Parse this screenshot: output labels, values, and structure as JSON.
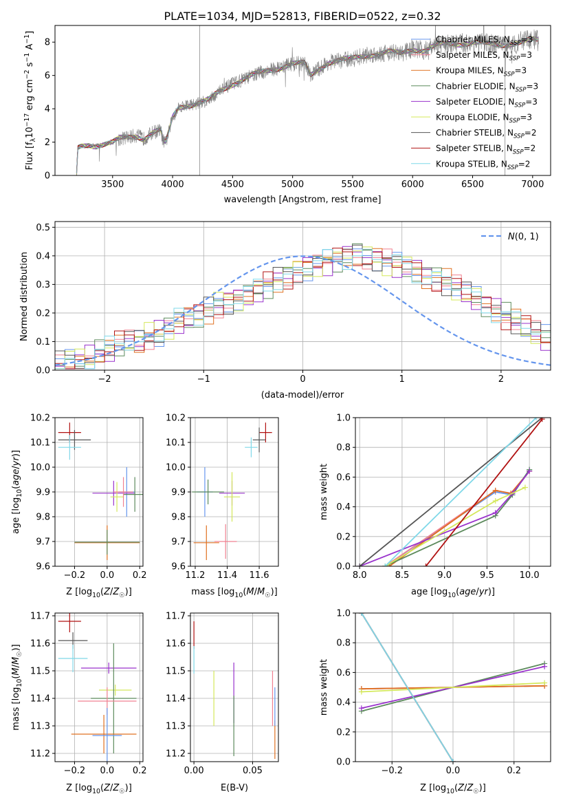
{
  "figure": {
    "title": "PLATE=1034, MJD=52813, FIBERID=0522, z=0.32"
  },
  "palette": {
    "Chabrier MILES": "#6495ed",
    "Salpeter MILES": "#f08090",
    "Kroupa MILES": "#e07020",
    "Chabrier ELODIE": "#5c8a5c",
    "Salpeter ELODIE": "#9932cc",
    "Kroupa ELODIE": "#d4e85a",
    "Chabrier STELIB": "#555555",
    "Salpeter STELIB": "#b01010",
    "Kroupa STELIB": "#7fd8e8",
    "data": "#808080"
  },
  "chart_data": [
    {
      "id": "spectrum",
      "type": "line",
      "xlabel": "wavelength [Angstrom, rest frame]",
      "ylabel": "Flux [f_λ 10^-17 erg cm^-2 s^-1 A^-1]",
      "xlim": [
        3020,
        7150
      ],
      "ylim": [
        0,
        9
      ],
      "xticks": [
        3500,
        4000,
        4500,
        5000,
        5500,
        6000,
        6500,
        7000
      ],
      "yticks": [
        0,
        2,
        4,
        6,
        8
      ],
      "grid": false,
      "legend_position": "top-right",
      "legend": [
        "Chabrier MILES, N_SSP=3",
        "Salpeter MILES, N_SSP=3",
        "Kroupa MILES, N_SSP=3",
        "Chabrier ELODIE, N_SSP=3",
        "Salpeter ELODIE, N_SSP=3",
        "Kroupa ELODIE, N_SSP=3",
        "Chabrier STELIB, N_SSP=2",
        "Salpeter STELIB, N_SSP=2",
        "Kroupa STELIB, N_SSP=2"
      ],
      "continuum": [
        [
          3200,
          0
        ],
        [
          3210,
          1.6
        ],
        [
          3240,
          1.75
        ],
        [
          3300,
          1.85
        ],
        [
          3360,
          1.8
        ],
        [
          3440,
          1.9
        ],
        [
          3500,
          1.95
        ],
        [
          3560,
          2.2
        ],
        [
          3640,
          2.3
        ],
        [
          3700,
          2.4
        ],
        [
          3760,
          2.2
        ],
        [
          3840,
          2.6
        ],
        [
          3900,
          2.7
        ],
        [
          3920,
          2.1
        ],
        [
          3940,
          1.9
        ],
        [
          3980,
          2.9
        ],
        [
          4000,
          3.5
        ],
        [
          4050,
          4.1
        ],
        [
          4100,
          4.2
        ],
        [
          4200,
          4.3
        ],
        [
          4300,
          4.5
        ],
        [
          4400,
          5.1
        ],
        [
          4500,
          5.5
        ],
        [
          4600,
          5.8
        ],
        [
          4700,
          6.1
        ],
        [
          4800,
          6.3
        ],
        [
          4900,
          6.5
        ],
        [
          5000,
          6.7
        ],
        [
          5100,
          6.7
        ],
        [
          5150,
          6.0
        ],
        [
          5200,
          6.3
        ],
        [
          5300,
          6.8
        ],
        [
          5400,
          6.9
        ],
        [
          5500,
          7.0
        ],
        [
          5600,
          7.2
        ],
        [
          5700,
          7.3
        ],
        [
          5800,
          7.4
        ],
        [
          5900,
          7.3
        ],
        [
          6000,
          7.6
        ],
        [
          6100,
          7.5
        ],
        [
          6200,
          7.8
        ],
        [
          6300,
          7.9
        ],
        [
          6400,
          7.9
        ],
        [
          6500,
          8.0
        ],
        [
          6600,
          7.9
        ],
        [
          6700,
          7.8
        ],
        [
          6800,
          7.9
        ],
        [
          6900,
          8.0
        ],
        [
          7000,
          8.1
        ],
        [
          7050,
          8.1
        ]
      ],
      "annotations": [
        {
          "x": 4225,
          "ymin": 0,
          "ymax": 9
        },
        {
          "x": 6770,
          "ymin": 0,
          "ymax": 9
        }
      ]
    },
    {
      "id": "residuals",
      "type": "line",
      "xlabel": "(data-model)/error",
      "ylabel": "Normed distribution",
      "xlim": [
        -2.5,
        2.5
      ],
      "ylim": [
        0,
        0.52
      ],
      "xticks": [
        -2,
        -1,
        0,
        1,
        2
      ],
      "yticks": [
        0.0,
        0.1,
        0.2,
        0.3,
        0.4,
        0.5
      ],
      "grid": true,
      "legend_position": "top-right",
      "legend": [
        "N(0, 1)"
      ],
      "normal_curve": {
        "mean": 0,
        "sd": 1,
        "style": "dashed",
        "color": "#6495ed"
      },
      "bins": {
        "start": -2.5,
        "width": 0.1,
        "count": 50
      },
      "histogram_base": [
        0.02,
        0.03,
        0.035,
        0.04,
        0.06,
        0.07,
        0.09,
        0.1,
        0.1,
        0.12,
        0.13,
        0.15,
        0.17,
        0.18,
        0.19,
        0.21,
        0.23,
        0.24,
        0.25,
        0.26,
        0.28,
        0.3,
        0.32,
        0.33,
        0.35,
        0.36,
        0.37,
        0.38,
        0.39,
        0.4,
        0.41,
        0.4,
        0.39,
        0.38,
        0.37,
        0.36,
        0.35,
        0.33,
        0.32,
        0.31,
        0.29,
        0.27,
        0.25,
        0.23,
        0.21,
        0.19,
        0.17,
        0.15,
        0.13,
        0.11
      ]
    },
    {
      "id": "age-vs-Z",
      "type": "scatter",
      "xlabel": "Z [log10(Z/Z☉)]",
      "ylabel": "age  [log10(age/yr)]",
      "xlim": [
        -0.32,
        0.22
      ],
      "ylim": [
        9.6,
        10.2
      ],
      "xticks": [
        -0.2,
        0.0,
        0.2
      ],
      "yticks": [
        9.6,
        9.7,
        9.8,
        9.9,
        10.0,
        10.1,
        10.2
      ],
      "grid": true,
      "points": [
        {
          "series": "Salpeter STELIB",
          "x": -0.23,
          "y": 10.14,
          "xerr": 0.07,
          "yerr": 0.04
        },
        {
          "series": "Chabrier STELIB",
          "x": -0.2,
          "y": 10.11,
          "xerr": 0.1,
          "yerr": 0.04
        },
        {
          "series": "Kroupa STELIB",
          "x": -0.23,
          "y": 10.08,
          "xerr": 0.07,
          "yerr": 0.05
        },
        {
          "series": "Chabrier MILES",
          "x": 0.12,
          "y": 9.9,
          "xerr": 0.05,
          "yerr": 0.1
        },
        {
          "series": "Salpeter ELODIE",
          "x": 0.04,
          "y": 9.895,
          "xerr": 0.13,
          "yerr": 0.05
        },
        {
          "series": "Chabrier ELODIE",
          "x": 0.17,
          "y": 9.89,
          "xerr": 0.07,
          "yerr": 0.07
        },
        {
          "series": "Kroupa ELODIE",
          "x": 0.06,
          "y": 9.88,
          "xerr": 0.04,
          "yerr": 0.06
        },
        {
          "series": "Salpeter MILES",
          "x": 0.1,
          "y": 9.9,
          "xerr": 0.06,
          "yerr": 0.06
        },
        {
          "series": "Kroupa MILES",
          "x": 0.0,
          "y": 9.695,
          "xerr": 0.2,
          "yerr": 0.07
        },
        {
          "series": "Chabrier ELODIE",
          "x": 0.0,
          "y": 9.697,
          "xerr": 0.2,
          "yerr": 0.05
        }
      ]
    },
    {
      "id": "age-vs-mass",
      "type": "scatter",
      "xlabel": "mass [log10(M/M☉)]",
      "ylabel": "",
      "xlim": [
        11.17,
        11.72
      ],
      "ylim": [
        9.6,
        10.2
      ],
      "xticks": [
        11.2,
        11.4,
        11.6
      ],
      "yticks": [
        9.6,
        9.7,
        9.8,
        9.9,
        10.0,
        10.1,
        10.2
      ],
      "grid": true,
      "points": [
        {
          "series": "Salpeter STELIB",
          "x": 11.64,
          "y": 10.14,
          "xerr": 0.04,
          "yerr": 0.04
        },
        {
          "series": "Chabrier STELIB",
          "x": 11.6,
          "y": 10.11,
          "xerr": 0.04,
          "yerr": 0.05
        },
        {
          "series": "Kroupa STELIB",
          "x": 11.55,
          "y": 10.08,
          "xerr": 0.04,
          "yerr": 0.04
        },
        {
          "series": "Chabrier MILES",
          "x": 11.26,
          "y": 9.9,
          "xerr": 0.05,
          "yerr": 0.1
        },
        {
          "series": "Salpeter ELODIE",
          "x": 11.43,
          "y": 9.895,
          "xerr": 0.08,
          "yerr": 0.05
        },
        {
          "series": "Kroupa ELODIE",
          "x": 11.43,
          "y": 9.88,
          "xerr": 0.05,
          "yerr": 0.1
        },
        {
          "series": "Chabrier ELODIE",
          "x": 11.28,
          "y": 9.9,
          "xerr": 0.1,
          "yerr": 0.05
        },
        {
          "series": "Salpeter MILES",
          "x": 11.39,
          "y": 9.7,
          "xerr": 0.07,
          "yerr": 0.07
        },
        {
          "series": "Kroupa MILES",
          "x": 11.27,
          "y": 9.695,
          "xerr": 0.08,
          "yerr": 0.07
        }
      ]
    },
    {
      "id": "mass-weight-vs-age",
      "type": "line",
      "xlabel": "age  [log10(age/yr)]",
      "ylabel": "mass weight",
      "xlim": [
        7.95,
        10.25
      ],
      "ylim": [
        0,
        1
      ],
      "xticks": [
        8.0,
        8.5,
        9.0,
        9.5,
        10.0
      ],
      "yticks": [
        0.0,
        0.2,
        0.4,
        0.6,
        0.8,
        1.0
      ],
      "grid": true,
      "series": [
        {
          "name": "Chabrier MILES",
          "points": [
            [
              8.3,
              0
            ],
            [
              9.6,
              0.5
            ],
            [
              9.8,
              0.48
            ],
            [
              10.0,
              0.65
            ]
          ]
        },
        {
          "name": "Salpeter MILES",
          "points": [
            [
              8.3,
              0
            ],
            [
              9.6,
              0.51
            ],
            [
              9.8,
              0.49
            ],
            [
              10.0,
              0.64
            ]
          ]
        },
        {
          "name": "Kroupa MILES",
          "points": [
            [
              8.35,
              0
            ],
            [
              9.6,
              0.51
            ],
            [
              9.78,
              0.49
            ],
            [
              10.0,
              0.64
            ]
          ]
        },
        {
          "name": "Chabrier ELODIE",
          "points": [
            [
              8.3,
              0
            ],
            [
              9.6,
              0.34
            ],
            [
              9.8,
              0.48
            ],
            [
              10.0,
              0.65
            ]
          ]
        },
        {
          "name": "Salpeter ELODIE",
          "points": [
            [
              8.0,
              0
            ],
            [
              9.6,
              0.36
            ],
            [
              9.8,
              0.49
            ],
            [
              10.0,
              0.64
            ]
          ]
        },
        {
          "name": "Kroupa ELODIE",
          "points": [
            [
              8.3,
              0
            ],
            [
              9.6,
              0.44
            ],
            [
              9.95,
              0.53
            ]
          ]
        },
        {
          "name": "Chabrier STELIB",
          "points": [
            [
              8.0,
              0
            ],
            [
              10.15,
              1.0
            ]
          ]
        },
        {
          "name": "Salpeter STELIB",
          "points": [
            [
              8.78,
              0
            ],
            [
              10.15,
              0.99
            ]
          ]
        },
        {
          "name": "Kroupa STELIB",
          "points": [
            [
              8.3,
              0
            ],
            [
              10.08,
              1.0
            ]
          ]
        }
      ]
    },
    {
      "id": "mass-vs-Z",
      "type": "scatter",
      "xlabel": "Z [log10(Z/Z☉)]",
      "ylabel": "mass [log10(M/M☉)]",
      "xlim": [
        -0.32,
        0.22
      ],
      "ylim": [
        11.17,
        11.71
      ],
      "xticks": [
        -0.2,
        0.0,
        0.2
      ],
      "yticks": [
        11.2,
        11.3,
        11.4,
        11.5,
        11.6,
        11.7
      ],
      "grid": true,
      "points": [
        {
          "series": "Salpeter STELIB",
          "x": -0.23,
          "y": 11.68,
          "xerr": 0.07,
          "yerr": 0.04
        },
        {
          "series": "Chabrier STELIB",
          "x": -0.21,
          "y": 11.61,
          "xerr": 0.09,
          "yerr": 0.03
        },
        {
          "series": "Kroupa STELIB",
          "x": -0.21,
          "y": 11.545,
          "xerr": 0.09,
          "yerr": 0.05
        },
        {
          "series": "Salpeter ELODIE",
          "x": 0.01,
          "y": 11.51,
          "xerr": 0.17,
          "yerr": 0.02
        },
        {
          "series": "Kroupa ELODIE",
          "x": 0.05,
          "y": 11.43,
          "xerr": 0.1,
          "yerr": 0.02
        },
        {
          "series": "Chabrier ELODIE",
          "x": 0.04,
          "y": 11.4,
          "xerr": 0.14,
          "yerr": 0.2
        },
        {
          "series": "Salpeter MILES",
          "x": 0.0,
          "y": 11.39,
          "xerr": 0.18,
          "yerr": 0.05
        },
        {
          "series": "Kroupa MILES",
          "x": -0.02,
          "y": 11.27,
          "xerr": 0.2,
          "yerr": 0.07
        },
        {
          "series": "Chabrier MILES",
          "x": 0.0,
          "y": 11.265,
          "xerr": 0.09,
          "yerr": 0.1
        }
      ]
    },
    {
      "id": "mass-vs-ebv",
      "type": "scatter",
      "xlabel": "E(B-V)",
      "ylabel": "",
      "xlim": [
        -0.003,
        0.072
      ],
      "ylim": [
        11.17,
        11.71
      ],
      "xticks": [
        0.0,
        0.05
      ],
      "yticks": [
        11.2,
        11.3,
        11.4,
        11.5,
        11.6,
        11.7
      ],
      "grid": true,
      "points": [
        {
          "series": "Salpeter STELIB",
          "x": 0.0,
          "y": 11.63,
          "xerr": 0,
          "yerr": 0.05
        },
        {
          "series": "Kroupa STELIB",
          "x": 0.0,
          "y": 11.54,
          "xerr": 0,
          "yerr": 0.05
        },
        {
          "series": "Kroupa ELODIE",
          "x": 0.017,
          "y": 11.4,
          "xerr": 0,
          "yerr": 0.1
        },
        {
          "series": "Salpeter ELODIE",
          "x": 0.034,
          "y": 11.42,
          "xerr": 0,
          "yerr": 0.11
        },
        {
          "series": "Chabrier ELODIE",
          "x": 0.034,
          "y": 11.3,
          "xerr": 0,
          "yerr": 0.11
        },
        {
          "series": "Salpeter MILES",
          "x": 0.067,
          "y": 11.4,
          "xerr": 0,
          "yerr": 0.1
        },
        {
          "series": "Kroupa MILES",
          "x": 0.069,
          "y": 11.25,
          "xerr": 0,
          "yerr": 0.07
        },
        {
          "series": "Chabrier MILES",
          "x": 0.069,
          "y": 11.37,
          "xerr": 0,
          "yerr": 0.07
        }
      ]
    },
    {
      "id": "mass-weight-vs-Z",
      "type": "line",
      "xlabel": "Z [log10(Z/Z☉)]",
      "ylabel": "mass weight",
      "xlim": [
        -0.32,
        0.32
      ],
      "ylim": [
        0,
        1
      ],
      "xticks": [
        -0.2,
        0.0,
        0.2
      ],
      "yticks": [
        0.0,
        0.2,
        0.4,
        0.6,
        0.8,
        1.0
      ],
      "grid": true,
      "series": [
        {
          "name": "Chabrier MILES",
          "points": [
            [
              -0.3,
              0.49
            ],
            [
              0.3,
              0.51
            ]
          ]
        },
        {
          "name": "Salpeter MILES",
          "points": [
            [
              -0.3,
              0.49
            ],
            [
              0.3,
              0.51
            ]
          ]
        },
        {
          "name": "Kroupa MILES",
          "points": [
            [
              -0.3,
              0.49
            ],
            [
              0.3,
              0.51
            ]
          ]
        },
        {
          "name": "Chabrier ELODIE",
          "points": [
            [
              -0.3,
              0.34
            ],
            [
              0.3,
              0.66
            ]
          ]
        },
        {
          "name": "Salpeter ELODIE",
          "points": [
            [
              -0.3,
              0.36
            ],
            [
              0.3,
              0.64
            ]
          ]
        },
        {
          "name": "Kroupa ELODIE",
          "points": [
            [
              -0.3,
              0.47
            ],
            [
              0.3,
              0.53
            ]
          ]
        },
        {
          "name": "Chabrier STELIB",
          "points": [
            [
              -0.3,
              1.0
            ],
            [
              0.0,
              0.0
            ]
          ]
        },
        {
          "name": "Salpeter STELIB",
          "points": [
            [
              -0.3,
              1.0
            ],
            [
              0.0,
              0.0
            ]
          ]
        },
        {
          "name": "Kroupa STELIB",
          "points": [
            [
              -0.3,
              1.0
            ],
            [
              0.0,
              0.0
            ]
          ]
        }
      ]
    }
  ]
}
